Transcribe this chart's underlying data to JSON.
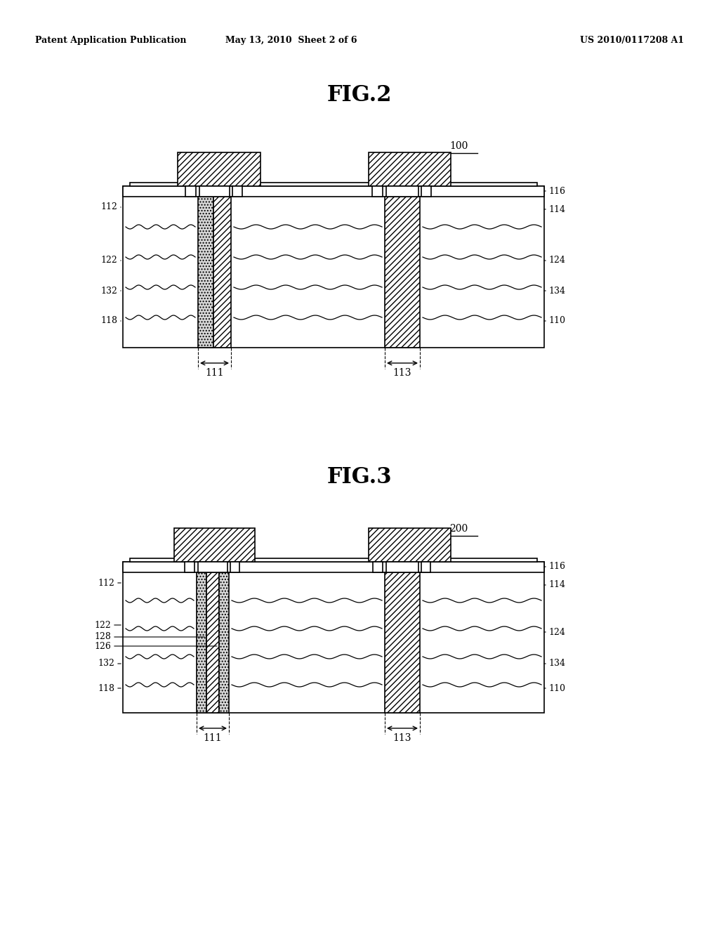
{
  "bg_color": "#ffffff",
  "text_color": "#000000",
  "header_left": "Patent Application Publication",
  "header_mid": "May 13, 2010  Sheet 2 of 6",
  "header_right": "US 2010/0117208 A1",
  "fig2_title": "FIG.2",
  "fig3_title": "FIG.3",
  "label_100": "100",
  "label_200": "200",
  "dim_labels": [
    "111",
    "113"
  ],
  "line_color": "#000000",
  "bg_color2": "#ffffff"
}
